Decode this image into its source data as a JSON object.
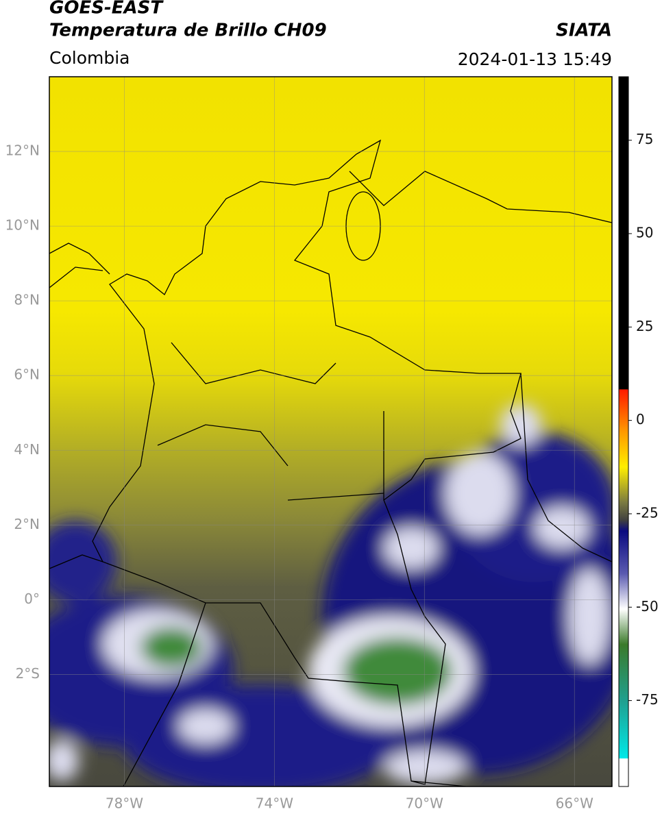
{
  "header": {
    "title_line1": "GOES-EAST",
    "title_line2": "Temperatura de Brillo CH09",
    "brand": "SIATA",
    "region": "Colombia",
    "timestamp": "2024-01-13 15:49"
  },
  "map": {
    "lon_range": [
      -80,
      -65
    ],
    "lat_range": [
      14,
      -5
    ],
    "lon_ticks": [
      {
        "value": -78,
        "label": "78°W"
      },
      {
        "value": -74,
        "label": "74°W"
      },
      {
        "value": -70,
        "label": "70°W"
      },
      {
        "value": -66,
        "label": "66°W"
      }
    ],
    "lat_ticks": [
      {
        "value": 12,
        "label": "12°N"
      },
      {
        "value": 10,
        "label": "10°N"
      },
      {
        "value": 8,
        "label": "8°N"
      },
      {
        "value": 6,
        "label": "6°N"
      },
      {
        "value": 4,
        "label": "4°N"
      },
      {
        "value": 2,
        "label": "2°N"
      },
      {
        "value": 0,
        "label": "0°"
      },
      {
        "value": -2,
        "label": "2°S"
      }
    ]
  },
  "colorbar": {
    "lim": [
      -98,
      92
    ],
    "ticks": [
      75,
      50,
      25,
      0,
      -25,
      -50,
      -75
    ]
  }
}
